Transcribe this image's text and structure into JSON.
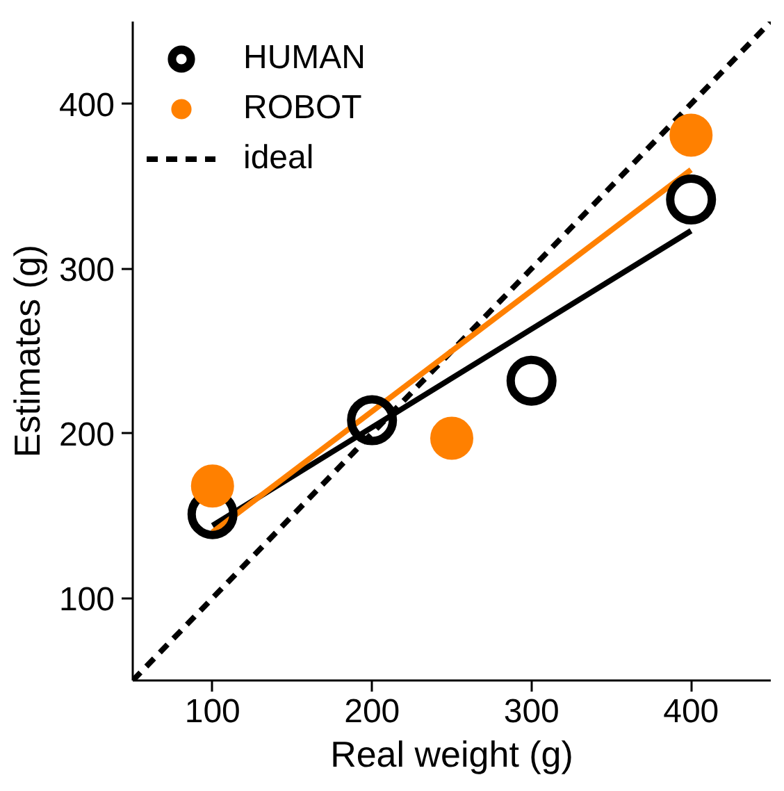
{
  "chart_data": {
    "type": "scatter",
    "xlabel": "Real weight (g)",
    "ylabel": "Estimates (g)",
    "xlim": [
      50,
      450
    ],
    "ylim": [
      50,
      450
    ],
    "xticks": [
      100,
      200,
      300,
      400
    ],
    "yticks": [
      100,
      200,
      300,
      400
    ],
    "grid": false,
    "legend": "top left",
    "series": [
      {
        "name": "HUMAN",
        "marker": "circle",
        "color": "#000000",
        "x": [
          100,
          200,
          300,
          400
        ],
        "values": [
          151,
          208,
          232,
          342
        ]
      },
      {
        "name": "ROBOT",
        "marker": "circle",
        "color": "#ff8000",
        "x": [
          100,
          250,
          400
        ],
        "values": [
          168,
          197,
          381
        ]
      },
      {
        "name": "ideal",
        "type": "line",
        "line_style": "dashed",
        "color": "#000000",
        "x": [
          50,
          450
        ],
        "values": [
          50,
          450
        ]
      },
      {
        "type": "line",
        "line_style": "solid",
        "color": "#000000",
        "x": [
          100,
          400
        ],
        "values": [
          144,
          323
        ]
      },
      {
        "type": "line",
        "line_style": "solid",
        "color": "#ff8000",
        "x": [
          100,
          400
        ],
        "values": [
          140,
          360
        ]
      }
    ]
  }
}
